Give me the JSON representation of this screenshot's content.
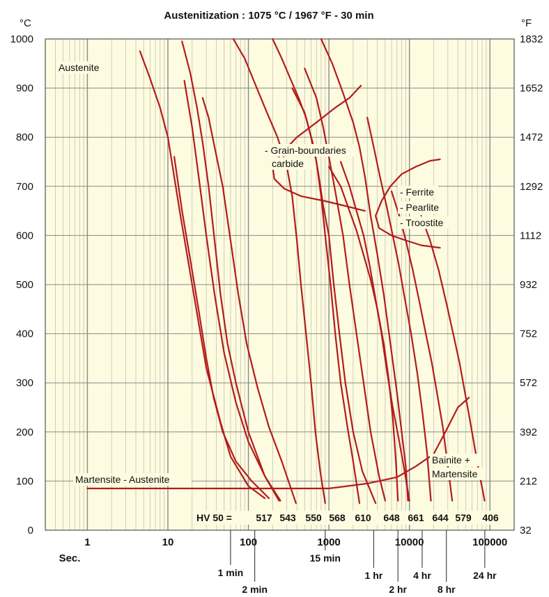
{
  "chart_data": {
    "type": "line",
    "title": "Austenitization : 1075 °C / 1967 °F - 30 min",
    "y_unit_left": "°C",
    "y_unit_right": "°F",
    "x_scale": "log",
    "xlim": [
      0.3,
      200000
    ],
    "ylim": [
      0,
      1000
    ],
    "x_ticks": [
      {
        "value": 1,
        "label": "1"
      },
      {
        "value": 10,
        "label": "10"
      },
      {
        "value": 100,
        "label": "100"
      },
      {
        "value": 1000,
        "label": "1000"
      },
      {
        "value": 10000,
        "label": "10000"
      },
      {
        "value": 100000,
        "label": "100000"
      }
    ],
    "x_unit": "Sec.",
    "time_marks": [
      {
        "value": 60,
        "label": "1 min"
      },
      {
        "value": 120,
        "label": "2 min"
      },
      {
        "value": 900,
        "label": "15 min"
      },
      {
        "value": 3600,
        "label": "1 hr"
      },
      {
        "value": 7200,
        "label": "2 hr"
      },
      {
        "value": 14400,
        "label": "4 hr"
      },
      {
        "value": 28800,
        "label": "8 hr"
      },
      {
        "value": 86400,
        "label": "24 hr"
      }
    ],
    "y_ticks_c": [
      "0",
      "100",
      "200",
      "300",
      "400",
      "500",
      "600",
      "700",
      "800",
      "900",
      "1000"
    ],
    "y_ticks_f": [
      "32",
      "212",
      "392",
      "572",
      "752",
      "932",
      "1112",
      "1292",
      "1472",
      "1652",
      "1832"
    ],
    "grid": true,
    "background": "#fdfbe0",
    "curve_color": "#b31b1b",
    "phase_labels": {
      "austenite": "Austenite",
      "gb_carbide_1": "- Grain-boundaries",
      "gb_carbide_2": "carbide",
      "ferrite": "- Ferrite",
      "pearlite": "- Pearlite",
      "troostite": "- Troostite",
      "bainite_1": "Bainite +",
      "bainite_2": "Martensite",
      "martensite_austenite": "Martensite - Austenite"
    },
    "hv_prefix": "HV 50 =",
    "hardness": [
      {
        "value": "517",
        "x": 180
      },
      {
        "value": "543",
        "x": 280
      },
      {
        "value": "550",
        "x": 420
      },
      {
        "value": "568",
        "x": 650
      },
      {
        "value": "610",
        "x": 1100
      },
      {
        "value": "648",
        "x": 7000
      },
      {
        "value": "661",
        "x": 11000
      },
      {
        "value": "644",
        "x": 20000
      },
      {
        "value": "579",
        "x": 40000
      },
      {
        "value": "406",
        "x": 90000
      }
    ],
    "cooling_curves": [
      [
        [
          4.5,
          975
        ],
        [
          6,
          920
        ],
        [
          8,
          860
        ],
        [
          10,
          800
        ],
        [
          14,
          650
        ],
        [
          20,
          500
        ],
        [
          30,
          330
        ],
        [
          45,
          220
        ],
        [
          60,
          150
        ],
        [
          100,
          90
        ],
        [
          160,
          65
        ]
      ],
      [
        [
          15,
          995
        ],
        [
          19,
          930
        ],
        [
          23,
          860
        ],
        [
          27,
          790
        ],
        [
          32,
          700
        ],
        [
          38,
          590
        ],
        [
          45,
          480
        ],
        [
          55,
          380
        ],
        [
          70,
          300
        ],
        [
          100,
          200
        ],
        [
          160,
          110
        ],
        [
          240,
          60
        ]
      ],
      [
        [
          16,
          915
        ],
        [
          20,
          820
        ],
        [
          25,
          700
        ],
        [
          30,
          600
        ],
        [
          38,
          480
        ],
        [
          50,
          360
        ],
        [
          70,
          260
        ],
        [
          100,
          180
        ],
        [
          160,
          110
        ],
        [
          250,
          60
        ]
      ],
      [
        [
          12,
          760
        ],
        [
          15,
          650
        ],
        [
          19,
          550
        ],
        [
          24,
          450
        ],
        [
          30,
          350
        ],
        [
          37,
          270
        ],
        [
          48,
          200
        ],
        [
          70,
          140
        ],
        [
          110,
          100
        ],
        [
          180,
          65
        ]
      ],
      [
        [
          27,
          880
        ],
        [
          32,
          840
        ],
        [
          38,
          780
        ],
        [
          48,
          700
        ],
        [
          60,
          590
        ],
        [
          75,
          480
        ],
        [
          95,
          380
        ],
        [
          130,
          290
        ],
        [
          180,
          210
        ],
        [
          260,
          140
        ],
        [
          390,
          55
        ]
      ],
      [
        [
          65,
          1000
        ],
        [
          90,
          960
        ],
        [
          120,
          910
        ],
        [
          170,
          850
        ],
        [
          230,
          800
        ],
        [
          300,
          740
        ],
        [
          350,
          680
        ],
        [
          400,
          590
        ],
        [
          450,
          500
        ],
        [
          520,
          400
        ],
        [
          600,
          300
        ],
        [
          680,
          200
        ],
        [
          780,
          120
        ],
        [
          900,
          55
        ]
      ],
      [
        [
          200,
          1000
        ],
        [
          260,
          960
        ],
        [
          330,
          920
        ],
        [
          420,
          880
        ],
        [
          520,
          840
        ],
        [
          600,
          800
        ],
        [
          700,
          750
        ],
        [
          800,
          680
        ],
        [
          900,
          600
        ],
        [
          1050,
          500
        ],
        [
          1200,
          400
        ],
        [
          1400,
          300
        ],
        [
          1700,
          210
        ],
        [
          2000,
          140
        ],
        [
          2400,
          55
        ]
      ],
      [
        [
          350,
          900
        ],
        [
          500,
          850
        ],
        [
          650,
          780
        ],
        [
          750,
          720
        ],
        [
          850,
          660
        ],
        [
          1000,
          600
        ],
        [
          1150,
          500
        ],
        [
          1350,
          400
        ],
        [
          1600,
          300
        ],
        [
          2000,
          200
        ],
        [
          2600,
          120
        ],
        [
          3800,
          55
        ]
      ],
      [
        [
          500,
          940
        ],
        [
          700,
          880
        ],
        [
          850,
          820
        ],
        [
          1000,
          760
        ],
        [
          1200,
          690
        ],
        [
          1500,
          600
        ],
        [
          1800,
          500
        ],
        [
          2200,
          400
        ],
        [
          2700,
          300
        ],
        [
          3300,
          200
        ],
        [
          4200,
          110
        ],
        [
          5000,
          60
        ]
      ],
      [
        [
          800,
          1000
        ],
        [
          1100,
          950
        ],
        [
          1500,
          890
        ],
        [
          2000,
          830
        ],
        [
          2400,
          780
        ],
        [
          2800,
          720
        ],
        [
          3300,
          640
        ],
        [
          4000,
          560
        ],
        [
          4800,
          480
        ],
        [
          5800,
          380
        ],
        [
          7000,
          280
        ],
        [
          8000,
          200
        ],
        [
          9000,
          130
        ],
        [
          9600,
          60
        ]
      ],
      [
        [
          3000,
          840
        ],
        [
          3600,
          780
        ],
        [
          4300,
          720
        ],
        [
          5200,
          660
        ],
        [
          6200,
          600
        ],
        [
          7400,
          540
        ],
        [
          8800,
          470
        ],
        [
          10500,
          400
        ],
        [
          12500,
          320
        ],
        [
          14500,
          240
        ],
        [
          16500,
          160
        ],
        [
          18500,
          60
        ]
      ],
      [
        [
          1000,
          740
        ],
        [
          1400,
          700
        ],
        [
          1800,
          650
        ],
        [
          2200,
          610
        ],
        [
          2700,
          560
        ],
        [
          3300,
          510
        ],
        [
          4000,
          450
        ],
        [
          4800,
          380
        ],
        [
          5500,
          310
        ],
        [
          6200,
          230
        ],
        [
          6800,
          140
        ],
        [
          7200,
          60
        ]
      ],
      [
        [
          6000,
          690
        ],
        [
          7500,
          640
        ],
        [
          9000,
          590
        ],
        [
          11000,
          530
        ],
        [
          13500,
          460
        ],
        [
          16000,
          400
        ],
        [
          19000,
          340
        ],
        [
          22000,
          280
        ],
        [
          26000,
          210
        ],
        [
          30000,
          130
        ],
        [
          34000,
          60
        ]
      ],
      [
        [
          1400,
          750
        ],
        [
          1800,
          700
        ],
        [
          2200,
          650
        ],
        [
          2700,
          600
        ],
        [
          3200,
          540
        ],
        [
          3800,
          470
        ],
        [
          4500,
          400
        ],
        [
          5300,
          320
        ],
        [
          6200,
          250
        ],
        [
          7300,
          190
        ],
        [
          8500,
          130
        ],
        [
          10000,
          60
        ]
      ],
      [
        [
          14000,
          640
        ],
        [
          18000,
          590
        ],
        [
          23000,
          530
        ],
        [
          29000,
          460
        ],
        [
          35000,
          400
        ],
        [
          42000,
          340
        ],
        [
          49000,
          280
        ],
        [
          57000,
          220
        ],
        [
          66000,
          160
        ],
        [
          75000,
          110
        ],
        [
          86000,
          60
        ]
      ]
    ],
    "gb_carbide_region": [
      [
        2500,
        905
      ],
      [
        1800,
        880
      ],
      [
        1200,
        860
      ],
      [
        700,
        830
      ],
      [
        400,
        800
      ],
      [
        250,
        765
      ],
      [
        200,
        740
      ],
      [
        210,
        715
      ],
      [
        280,
        695
      ],
      [
        450,
        680
      ],
      [
        900,
        670
      ],
      [
        1600,
        660
      ],
      [
        2800,
        650
      ]
    ],
    "fpt_region": [
      [
        24000,
        755
      ],
      [
        18000,
        752
      ],
      [
        12000,
        740
      ],
      [
        8000,
        725
      ],
      [
        5800,
        700
      ],
      [
        4500,
        670
      ],
      [
        3800,
        640
      ],
      [
        4200,
        615
      ],
      [
        6000,
        600
      ],
      [
        9000,
        590
      ],
      [
        14000,
        580
      ],
      [
        24000,
        575
      ]
    ],
    "martensite_austenite_line": [
      [
        1,
        85
      ],
      [
        20,
        85
      ],
      [
        100,
        85
      ],
      [
        300,
        85
      ],
      [
        1000,
        85
      ],
      [
        3000,
        95
      ],
      [
        7000,
        108
      ],
      [
        12000,
        130
      ],
      [
        20000,
        155
      ],
      [
        28000,
        200
      ],
      [
        40000,
        250
      ],
      [
        55000,
        270
      ]
    ]
  }
}
